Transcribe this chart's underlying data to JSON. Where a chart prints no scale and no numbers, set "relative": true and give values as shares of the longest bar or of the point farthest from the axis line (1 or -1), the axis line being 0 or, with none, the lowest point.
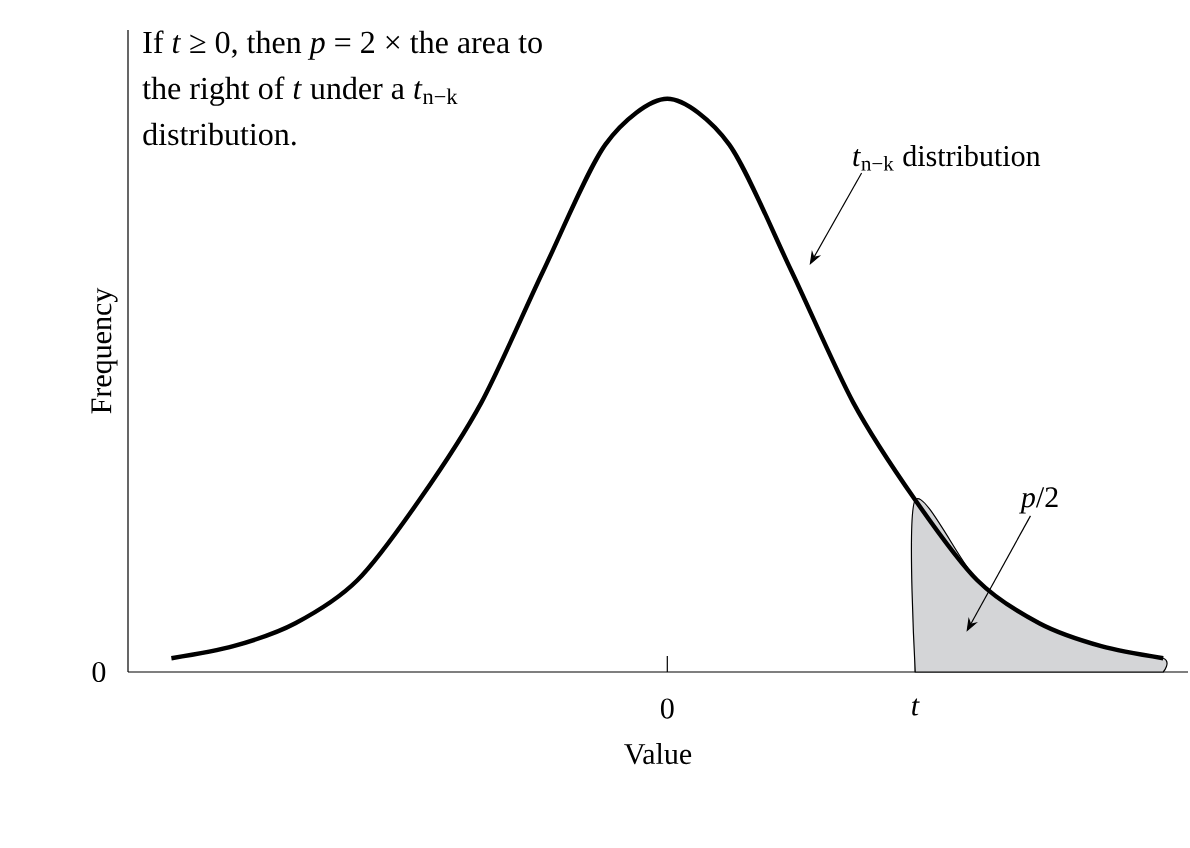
{
  "chart_data": {
    "type": "line",
    "relative": true,
    "xlabel": "Value",
    "ylabel": "Frequency",
    "categories": [
      null,
      null,
      null,
      null,
      null,
      null,
      null,
      null,
      "0",
      null,
      null,
      null,
      "*t*",
      null,
      null,
      null,
      null
    ],
    "series": [
      {
        "color": "#000000",
        "values": [
          0.024,
          0.045,
          0.085,
          0.16,
          0.3,
          0.47,
          0.7,
          0.92,
          1,
          0.92,
          0.7,
          0.47,
          0.3,
          0.16,
          0.085,
          0.045,
          0.024
        ]
      },
      {
        "type": "area",
        "color": "#d4d5d7",
        "values": [
          null,
          null,
          null,
          null,
          null,
          null,
          null,
          null,
          null,
          null,
          null,
          null,
          0.3,
          0.16,
          0.085,
          0.045,
          0.024
        ]
      }
    ],
    "annotations": [
      "If *t* ≥ 0, then *p* = 2 × the area to the right of *t* under a *t*$_{n−k}$ distribution.",
      "0",
      "*t*$_{n−k}$ distribution",
      "*p*/2"
    ]
  }
}
